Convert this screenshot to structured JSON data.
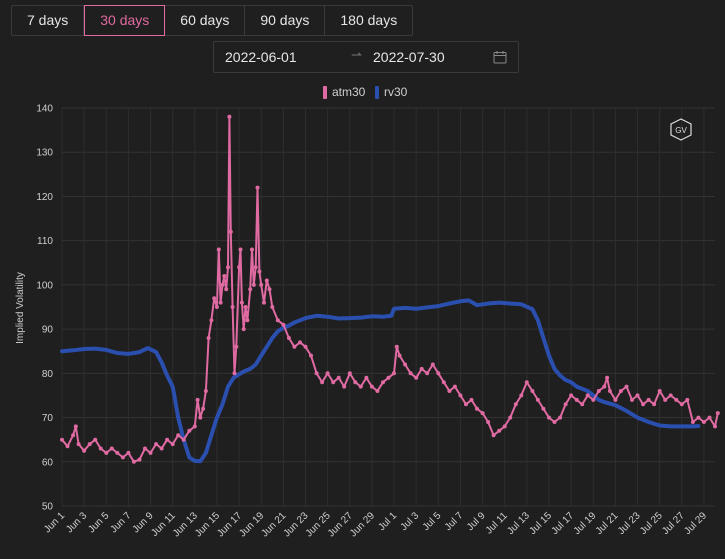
{
  "range_buttons": [
    {
      "label": "7 days",
      "active": false
    },
    {
      "label": "30 days",
      "active": true
    },
    {
      "label": "60 days",
      "active": false
    },
    {
      "label": "90 days",
      "active": false
    },
    {
      "label": "180 days",
      "active": false
    }
  ],
  "date_range": {
    "start": "2022-06-01",
    "separator": "⇀",
    "end": "2022-07-30"
  },
  "watermark": "GV",
  "colors": {
    "atm30": "#e06aa2",
    "rv30": "#2a4fae",
    "accent": "#e06aa2"
  },
  "chart_data": {
    "type": "line",
    "title": "",
    "xlabel": "",
    "ylabel": "Implied Volatility",
    "ylim": [
      50,
      140
    ],
    "yticks": [
      50,
      60,
      70,
      80,
      90,
      100,
      110,
      120,
      130,
      140
    ],
    "grid": true,
    "legend_position": "top-center",
    "x_start": "2022-06-01",
    "x_end": "2022-07-30",
    "x_tick_labels": [
      "Jun 1",
      "Jun 3",
      "Jun 5",
      "Jun 7",
      "Jun 9",
      "Jun 11",
      "Jun 13",
      "Jun 15",
      "Jun 17",
      "Jun 19",
      "Jun 21",
      "Jun 23",
      "Jun 25",
      "Jun 27",
      "Jun 29",
      "Jul 1",
      "Jul 3",
      "Jul 5",
      "Jul 7",
      "Jul 9",
      "Jul 11",
      "Jul 13",
      "Jul 15",
      "Jul 17",
      "Jul 19",
      "Jul 21",
      "Jul 23",
      "Jul 25",
      "Jul 27",
      "Jul 29"
    ],
    "series": [
      {
        "name": "atm30",
        "points": [
          [
            "2022-06-01 00:00",
            65
          ],
          [
            "2022-06-01 12:00",
            63.5
          ],
          [
            "2022-06-02 00:00",
            66
          ],
          [
            "2022-06-02 06:00",
            68
          ],
          [
            "2022-06-02 12:00",
            64
          ],
          [
            "2022-06-03 00:00",
            62.5
          ],
          [
            "2022-06-03 12:00",
            64
          ],
          [
            "2022-06-04 00:00",
            65
          ],
          [
            "2022-06-04 12:00",
            63
          ],
          [
            "2022-06-05 00:00",
            62
          ],
          [
            "2022-06-05 12:00",
            63
          ],
          [
            "2022-06-06 00:00",
            62
          ],
          [
            "2022-06-06 12:00",
            61
          ],
          [
            "2022-06-07 00:00",
            62
          ],
          [
            "2022-06-07 12:00",
            60
          ],
          [
            "2022-06-08 00:00",
            60.5
          ],
          [
            "2022-06-08 12:00",
            63
          ],
          [
            "2022-06-09 00:00",
            62
          ],
          [
            "2022-06-09 12:00",
            64
          ],
          [
            "2022-06-10 00:00",
            63
          ],
          [
            "2022-06-10 12:00",
            65
          ],
          [
            "2022-06-11 00:00",
            64
          ],
          [
            "2022-06-11 12:00",
            66
          ],
          [
            "2022-06-12 00:00",
            65
          ],
          [
            "2022-06-12 12:00",
            67
          ],
          [
            "2022-06-13 00:00",
            68
          ],
          [
            "2022-06-13 06:00",
            74
          ],
          [
            "2022-06-13 12:00",
            70
          ],
          [
            "2022-06-13 18:00",
            72
          ],
          [
            "2022-06-14 00:00",
            76
          ],
          [
            "2022-06-14 06:00",
            88
          ],
          [
            "2022-06-14 12:00",
            92
          ],
          [
            "2022-06-14 18:00",
            97
          ],
          [
            "2022-06-15 00:00",
            95
          ],
          [
            "2022-06-15 04:00",
            108
          ],
          [
            "2022-06-15 08:00",
            96
          ],
          [
            "2022-06-15 12:00",
            100
          ],
          [
            "2022-06-15 16:00",
            102
          ],
          [
            "2022-06-15 20:00",
            99
          ],
          [
            "2022-06-16 00:00",
            104
          ],
          [
            "2022-06-16 03:00",
            138
          ],
          [
            "2022-06-16 06:00",
            112
          ],
          [
            "2022-06-16 10:00",
            95
          ],
          [
            "2022-06-16 14:00",
            80
          ],
          [
            "2022-06-16 18:00",
            86
          ],
          [
            "2022-06-17 00:00",
            104
          ],
          [
            "2022-06-17 03:00",
            108
          ],
          [
            "2022-06-17 06:00",
            96
          ],
          [
            "2022-06-17 10:00",
            90
          ],
          [
            "2022-06-17 14:00",
            95
          ],
          [
            "2022-06-17 18:00",
            92
          ],
          [
            "2022-06-18 00:00",
            99
          ],
          [
            "2022-06-18 04:00",
            108
          ],
          [
            "2022-06-18 08:00",
            100
          ],
          [
            "2022-06-18 12:00",
            104
          ],
          [
            "2022-06-18 16:00",
            122
          ],
          [
            "2022-06-18 20:00",
            103
          ],
          [
            "2022-06-19 00:00",
            100
          ],
          [
            "2022-06-19 06:00",
            96
          ],
          [
            "2022-06-19 12:00",
            101
          ],
          [
            "2022-06-19 18:00",
            99
          ],
          [
            "2022-06-20 00:00",
            95
          ],
          [
            "2022-06-20 12:00",
            92
          ],
          [
            "2022-06-21 00:00",
            91
          ],
          [
            "2022-06-21 12:00",
            88
          ],
          [
            "2022-06-22 00:00",
            86
          ],
          [
            "2022-06-22 12:00",
            87
          ],
          [
            "2022-06-23 00:00",
            86
          ],
          [
            "2022-06-23 12:00",
            84
          ],
          [
            "2022-06-24 00:00",
            80
          ],
          [
            "2022-06-24 12:00",
            78
          ],
          [
            "2022-06-25 00:00",
            80
          ],
          [
            "2022-06-25 12:00",
            78
          ],
          [
            "2022-06-26 00:00",
            79
          ],
          [
            "2022-06-26 12:00",
            77
          ],
          [
            "2022-06-27 00:00",
            80
          ],
          [
            "2022-06-27 12:00",
            78
          ],
          [
            "2022-06-28 00:00",
            77
          ],
          [
            "2022-06-28 12:00",
            79
          ],
          [
            "2022-06-29 00:00",
            77
          ],
          [
            "2022-06-29 12:00",
            76
          ],
          [
            "2022-06-30 00:00",
            78
          ],
          [
            "2022-06-30 12:00",
            79
          ],
          [
            "2022-07-01 00:00",
            80
          ],
          [
            "2022-07-01 06:00",
            86
          ],
          [
            "2022-07-01 12:00",
            84
          ],
          [
            "2022-07-02 00:00",
            82
          ],
          [
            "2022-07-02 12:00",
            80
          ],
          [
            "2022-07-03 00:00",
            79
          ],
          [
            "2022-07-03 12:00",
            81
          ],
          [
            "2022-07-04 00:00",
            80
          ],
          [
            "2022-07-04 12:00",
            82
          ],
          [
            "2022-07-05 00:00",
            80
          ],
          [
            "2022-07-05 12:00",
            78
          ],
          [
            "2022-07-06 00:00",
            76
          ],
          [
            "2022-07-06 12:00",
            77
          ],
          [
            "2022-07-07 00:00",
            75
          ],
          [
            "2022-07-07 12:00",
            73
          ],
          [
            "2022-07-08 00:00",
            74
          ],
          [
            "2022-07-08 12:00",
            72
          ],
          [
            "2022-07-09 00:00",
            71
          ],
          [
            "2022-07-09 12:00",
            69
          ],
          [
            "2022-07-10 00:00",
            66
          ],
          [
            "2022-07-10 12:00",
            67
          ],
          [
            "2022-07-11 00:00",
            68
          ],
          [
            "2022-07-11 12:00",
            70
          ],
          [
            "2022-07-12 00:00",
            73
          ],
          [
            "2022-07-12 12:00",
            75
          ],
          [
            "2022-07-13 00:00",
            78
          ],
          [
            "2022-07-13 12:00",
            76
          ],
          [
            "2022-07-14 00:00",
            74
          ],
          [
            "2022-07-14 12:00",
            72
          ],
          [
            "2022-07-15 00:00",
            70
          ],
          [
            "2022-07-15 12:00",
            69
          ],
          [
            "2022-07-16 00:00",
            70
          ],
          [
            "2022-07-16 12:00",
            73
          ],
          [
            "2022-07-17 00:00",
            75
          ],
          [
            "2022-07-17 12:00",
            74
          ],
          [
            "2022-07-18 00:00",
            73
          ],
          [
            "2022-07-18 12:00",
            75
          ],
          [
            "2022-07-19 00:00",
            74
          ],
          [
            "2022-07-19 12:00",
            76
          ],
          [
            "2022-07-20 00:00",
            77
          ],
          [
            "2022-07-20 06:00",
            79
          ],
          [
            "2022-07-20 12:00",
            76
          ],
          [
            "2022-07-21 00:00",
            74
          ],
          [
            "2022-07-21 12:00",
            76
          ],
          [
            "2022-07-22 00:00",
            77
          ],
          [
            "2022-07-22 12:00",
            74
          ],
          [
            "2022-07-23 00:00",
            75
          ],
          [
            "2022-07-23 12:00",
            73
          ],
          [
            "2022-07-24 00:00",
            74
          ],
          [
            "2022-07-24 12:00",
            73
          ],
          [
            "2022-07-25 00:00",
            76
          ],
          [
            "2022-07-25 12:00",
            74
          ],
          [
            "2022-07-26 00:00",
            75
          ],
          [
            "2022-07-26 12:00",
            74
          ],
          [
            "2022-07-27 00:00",
            73
          ],
          [
            "2022-07-27 12:00",
            74
          ],
          [
            "2022-07-28 00:00",
            69
          ],
          [
            "2022-07-28 12:00",
            70
          ],
          [
            "2022-07-29 00:00",
            69
          ],
          [
            "2022-07-29 12:00",
            70
          ],
          [
            "2022-07-30 00:00",
            68
          ],
          [
            "2022-07-30 06:00",
            71
          ]
        ]
      },
      {
        "name": "rv30",
        "points": [
          [
            "2022-06-01 00:00",
            85
          ],
          [
            "2022-06-02 00:00",
            85.2
          ],
          [
            "2022-06-03 00:00",
            85.5
          ],
          [
            "2022-06-04 00:00",
            85.6
          ],
          [
            "2022-06-05 00:00",
            85.3
          ],
          [
            "2022-06-06 00:00",
            84.6
          ],
          [
            "2022-06-07 00:00",
            84.4
          ],
          [
            "2022-06-08 00:00",
            84.8
          ],
          [
            "2022-06-08 18:00",
            85.7
          ],
          [
            "2022-06-09 12:00",
            84.8
          ],
          [
            "2022-06-10 00:00",
            82.5
          ],
          [
            "2022-06-10 12:00",
            79.5
          ],
          [
            "2022-06-11 00:00",
            77
          ],
          [
            "2022-06-11 12:00",
            70
          ],
          [
            "2022-06-12 00:00",
            65
          ],
          [
            "2022-06-12 12:00",
            61
          ],
          [
            "2022-06-13 00:00",
            60.2
          ],
          [
            "2022-06-13 12:00",
            60.1
          ],
          [
            "2022-06-14 00:00",
            62
          ],
          [
            "2022-06-14 12:00",
            66
          ],
          [
            "2022-06-15 00:00",
            70
          ],
          [
            "2022-06-15 12:00",
            73
          ],
          [
            "2022-06-16 00:00",
            77
          ],
          [
            "2022-06-16 12:00",
            79
          ],
          [
            "2022-06-17 00:00",
            79.8
          ],
          [
            "2022-06-17 12:00",
            80.5
          ],
          [
            "2022-06-18 00:00",
            81
          ],
          [
            "2022-06-18 12:00",
            82
          ],
          [
            "2022-06-19 00:00",
            84
          ],
          [
            "2022-06-19 12:00",
            86
          ],
          [
            "2022-06-20 00:00",
            88
          ],
          [
            "2022-06-20 12:00",
            89.5
          ],
          [
            "2022-06-21 00:00",
            90.3
          ],
          [
            "2022-06-21 12:00",
            90.8
          ],
          [
            "2022-06-22 00:00",
            91.5
          ],
          [
            "2022-06-22 12:00",
            92
          ],
          [
            "2022-06-23 00:00",
            92.5
          ],
          [
            "2022-06-24 00:00",
            93
          ],
          [
            "2022-06-25 00:00",
            92.8
          ],
          [
            "2022-06-26 00:00",
            92.4
          ],
          [
            "2022-06-27 00:00",
            92.5
          ],
          [
            "2022-06-28 00:00",
            92.6
          ],
          [
            "2022-06-29 00:00",
            92.9
          ],
          [
            "2022-06-30 00:00",
            92.8
          ],
          [
            "2022-06-30 18:00",
            93
          ],
          [
            "2022-07-01 00:00",
            94.6
          ],
          [
            "2022-07-02 00:00",
            94.8
          ],
          [
            "2022-07-03 00:00",
            94.6
          ],
          [
            "2022-07-04 00:00",
            94.9
          ],
          [
            "2022-07-05 00:00",
            95.2
          ],
          [
            "2022-07-06 00:00",
            95.8
          ],
          [
            "2022-07-07 00:00",
            96.3
          ],
          [
            "2022-07-07 18:00",
            96.5
          ],
          [
            "2022-07-08 12:00",
            95.4
          ],
          [
            "2022-07-09 12:00",
            95.8
          ],
          [
            "2022-07-10 12:00",
            96
          ],
          [
            "2022-07-11 12:00",
            95.8
          ],
          [
            "2022-07-12 12:00",
            95.6
          ],
          [
            "2022-07-13 12:00",
            94.5
          ],
          [
            "2022-07-14 00:00",
            92
          ],
          [
            "2022-07-14 12:00",
            88
          ],
          [
            "2022-07-15 00:00",
            84
          ],
          [
            "2022-07-15 12:00",
            81
          ],
          [
            "2022-07-16 00:00",
            79.5
          ],
          [
            "2022-07-16 12:00",
            78.5
          ],
          [
            "2022-07-17 00:00",
            78
          ],
          [
            "2022-07-17 12:00",
            77
          ],
          [
            "2022-07-18 00:00",
            76.5
          ],
          [
            "2022-07-18 12:00",
            76
          ],
          [
            "2022-07-19 00:00",
            75
          ],
          [
            "2022-07-19 12:00",
            74
          ],
          [
            "2022-07-20 00:00",
            73.5
          ],
          [
            "2022-07-21 00:00",
            72.8
          ],
          [
            "2022-07-22 00:00",
            71.5
          ],
          [
            "2022-07-23 00:00",
            70
          ],
          [
            "2022-07-24 00:00",
            69
          ],
          [
            "2022-07-25 00:00",
            68.2
          ],
          [
            "2022-07-26 00:00",
            68
          ],
          [
            "2022-07-27 00:00",
            68
          ],
          [
            "2022-07-28 00:00",
            68
          ],
          [
            "2022-07-28 12:00",
            68.1
          ]
        ]
      }
    ]
  }
}
